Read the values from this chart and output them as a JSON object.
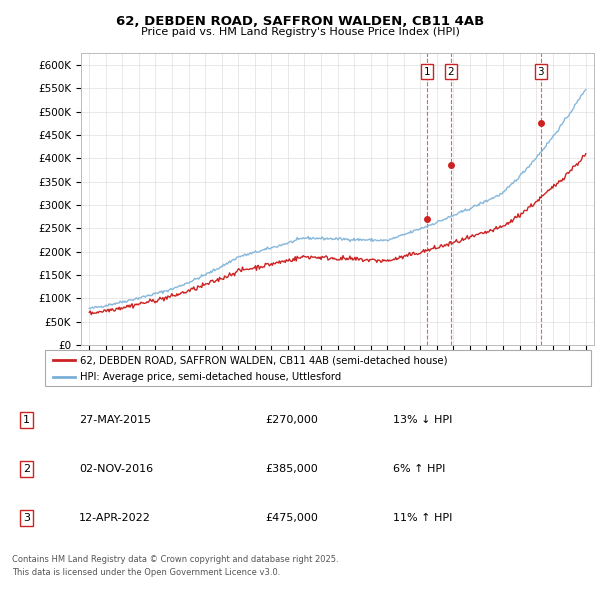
{
  "title_line1": "62, DEBDEN ROAD, SAFFRON WALDEN, CB11 4AB",
  "title_line2": "Price paid vs. HM Land Registry's House Price Index (HPI)",
  "hpi_color": "#7ab0d8",
  "price_color": "#cc2222",
  "sale_color": "#cc2222",
  "vline_color": "#cc2222",
  "legend_border_color": "#aaaaaa",
  "grid_color": "#e0e0e0",
  "sales": [
    {
      "date_num": 2015.41,
      "price": 270000,
      "label": "1"
    },
    {
      "date_num": 2016.84,
      "price": 385000,
      "label": "2"
    },
    {
      "date_num": 2022.28,
      "price": 475000,
      "label": "3"
    }
  ],
  "sale_table": [
    {
      "num": "1",
      "date": "27-MAY-2015",
      "price": "£270,000",
      "hpi_diff": "13% ↓ HPI"
    },
    {
      "num": "2",
      "date": "02-NOV-2016",
      "price": "£385,000",
      "hpi_diff": "6% ↑ HPI"
    },
    {
      "num": "3",
      "date": "12-APR-2022",
      "price": "£475,000",
      "hpi_diff": "11% ↑ HPI"
    }
  ],
  "legend_entries": [
    "62, DEBDEN ROAD, SAFFRON WALDEN, CB11 4AB (semi-detached house)",
    "HPI: Average price, semi-detached house, Uttlesford"
  ],
  "footer_line1": "Contains HM Land Registry data © Crown copyright and database right 2025.",
  "footer_line2": "This data is licensed under the Open Government Licence v3.0.",
  "xlim": [
    1994.5,
    2025.5
  ],
  "ylim": [
    0,
    625000
  ],
  "yticks": [
    0,
    50000,
    100000,
    150000,
    200000,
    250000,
    300000,
    350000,
    400000,
    450000,
    500000,
    550000,
    600000
  ]
}
